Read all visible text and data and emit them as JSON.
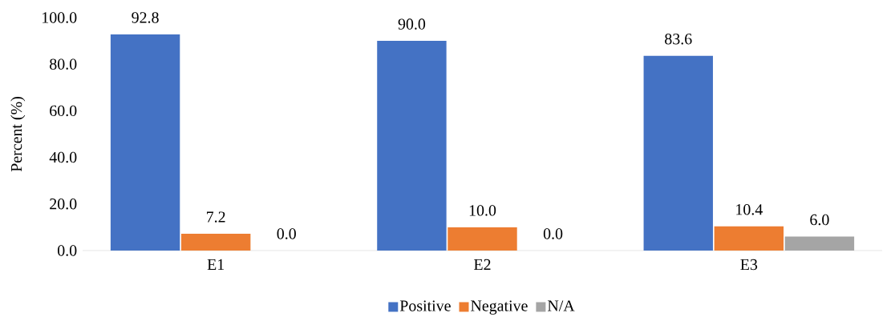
{
  "chart_data": {
    "type": "bar",
    "ylabel": "Percent (%)",
    "categories": [
      "E1",
      "E2",
      "E3"
    ],
    "series": [
      {
        "name": "Positive",
        "color": "#4472c4",
        "values": [
          92.8,
          90.0,
          83.6
        ]
      },
      {
        "name": "Negative",
        "color": "#ed7d31",
        "values": [
          7.2,
          10.0,
          10.4
        ]
      },
      {
        "name": "N/A",
        "color": "#a5a5a5",
        "values": [
          0.0,
          0.0,
          6.0
        ]
      }
    ],
    "value_labels": [
      [
        "92.8",
        "90.0",
        "83.6"
      ],
      [
        "7.2",
        "10.0",
        "10.4"
      ],
      [
        "0.0",
        "0.0",
        "6.0"
      ]
    ],
    "ylim": [
      0,
      100
    ],
    "yticks": [
      {
        "value": 0,
        "label": "0.0"
      },
      {
        "value": 20,
        "label": "20.0"
      },
      {
        "value": 40,
        "label": "40.0"
      },
      {
        "value": 60,
        "label": "60.0"
      },
      {
        "value": 80,
        "label": "80.0"
      },
      {
        "value": 100,
        "label": "100.0"
      }
    ],
    "legend": "bottom"
  }
}
